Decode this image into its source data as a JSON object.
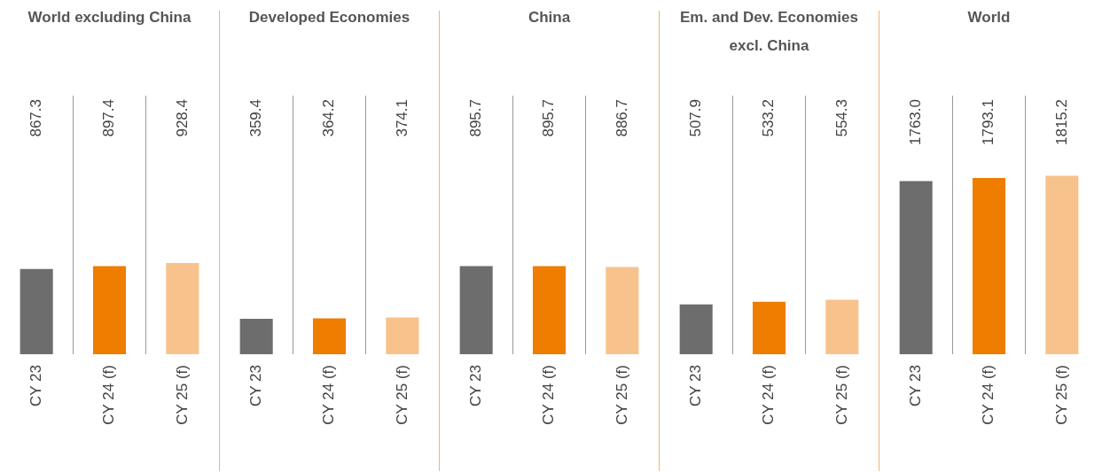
{
  "chart_data": [
    {
      "type": "bar",
      "title": "World excluding China",
      "categories": [
        "CY 23",
        "CY 24 (f)",
        "CY 25 (f)"
      ],
      "values": [
        867.3,
        897.4,
        928.4
      ],
      "value_labels": [
        "867.3",
        "897.4",
        "928.4"
      ],
      "colors": [
        "#6d6d6d",
        "#ee7d00",
        "#f8c28c"
      ],
      "grid": "x",
      "tick_labels": "x"
    },
    {
      "type": "bar",
      "title": "Developed Economies",
      "categories": [
        "CY 23",
        "CY 24 (f)",
        "CY 25 (f)"
      ],
      "values": [
        359.4,
        364.2,
        374.1
      ],
      "value_labels": [
        "359.4",
        "364.2",
        "374.1"
      ],
      "colors": [
        "#6d6d6d",
        "#ee7d00",
        "#f8c28c"
      ],
      "grid": "x",
      "tick_labels": "x"
    },
    {
      "type": "bar",
      "title": "China",
      "categories": [
        "CY 23",
        "CY 24 (f)",
        "CY 25 (f)"
      ],
      "values": [
        895.7,
        895.7,
        886.7
      ],
      "value_labels": [
        "895.7",
        "895.7",
        "886.7"
      ],
      "colors": [
        "#6d6d6d",
        "#ee7d00",
        "#f8c28c"
      ],
      "grid": "x",
      "tick_labels": "x"
    },
    {
      "type": "bar",
      "title": "Em. and Dev. Economies excl. China",
      "categories": [
        "CY 23",
        "CY 24 (f)",
        "CY 25 (f)"
      ],
      "values": [
        507.9,
        533.2,
        554.3
      ],
      "value_labels": [
        "507.9",
        "533.2",
        "554.3"
      ],
      "colors": [
        "#6d6d6d",
        "#ee7d00",
        "#f8c28c"
      ],
      "grid": "x",
      "tick_labels": "x"
    },
    {
      "type": "bar",
      "title": "World",
      "categories": [
        "CY 23",
        "CY 24 (f)",
        "CY 25 (f)"
      ],
      "values": [
        1763.0,
        1793.1,
        1815.2
      ],
      "value_labels": [
        "1763.0",
        "1793.1",
        "1815.2"
      ],
      "colors": [
        "#6d6d6d",
        "#ee7d00",
        "#f8c28c"
      ],
      "grid": "x",
      "tick_labels": "x"
    }
  ]
}
